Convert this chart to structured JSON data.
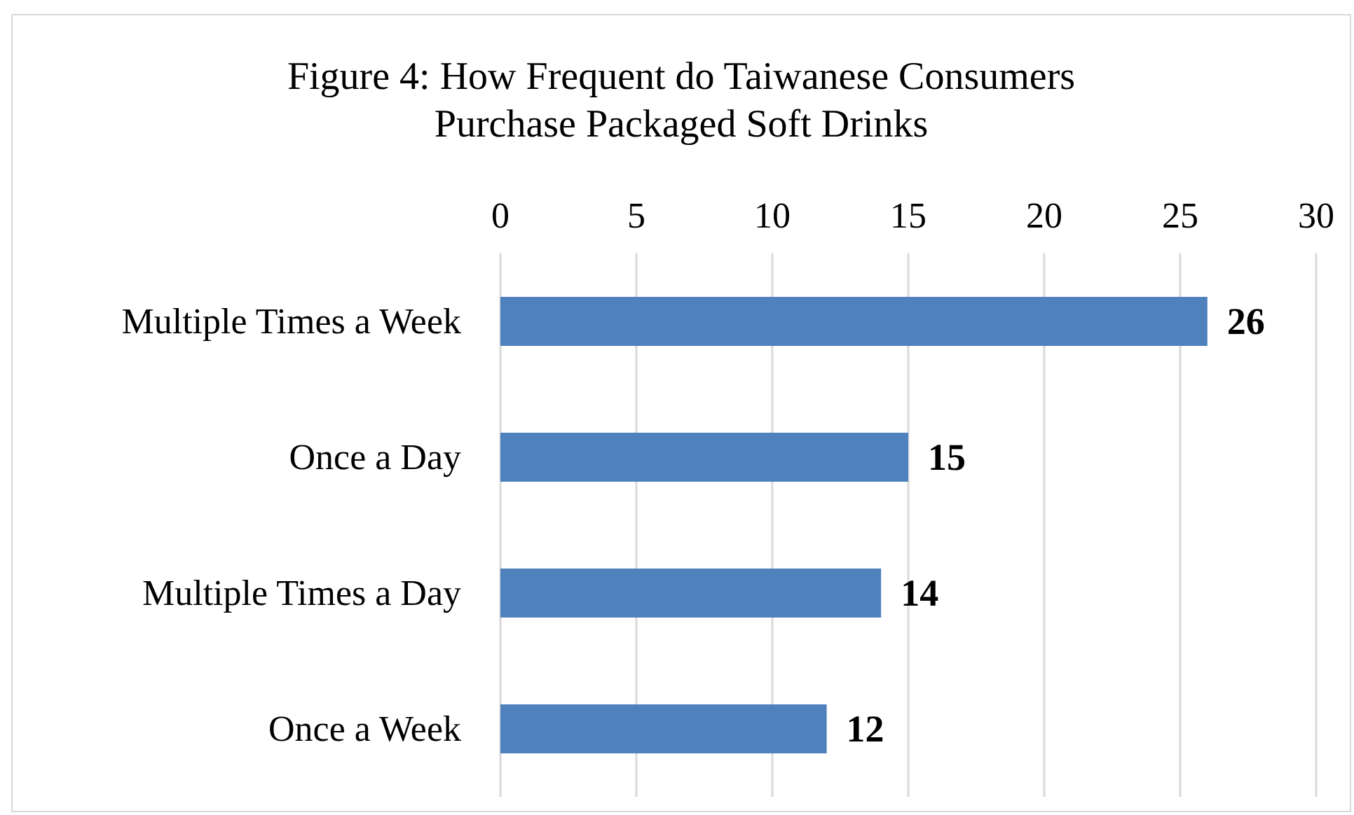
{
  "chart_data": {
    "type": "bar",
    "orientation": "horizontal",
    "title": "Figure 4: How Frequent do Taiwanese Consumers\nPurchase Packaged Soft Drinks",
    "categories": [
      "Multiple Times a Week",
      "Once a Day",
      "Multiple Times a Day",
      "Once a Week"
    ],
    "values": [
      26,
      15,
      14,
      12
    ],
    "color": "#4f81bd",
    "xlim": [
      0,
      30
    ],
    "xticks": [
      0,
      5,
      10,
      15,
      20,
      25,
      30
    ],
    "grid": "x",
    "data_labels": true
  }
}
